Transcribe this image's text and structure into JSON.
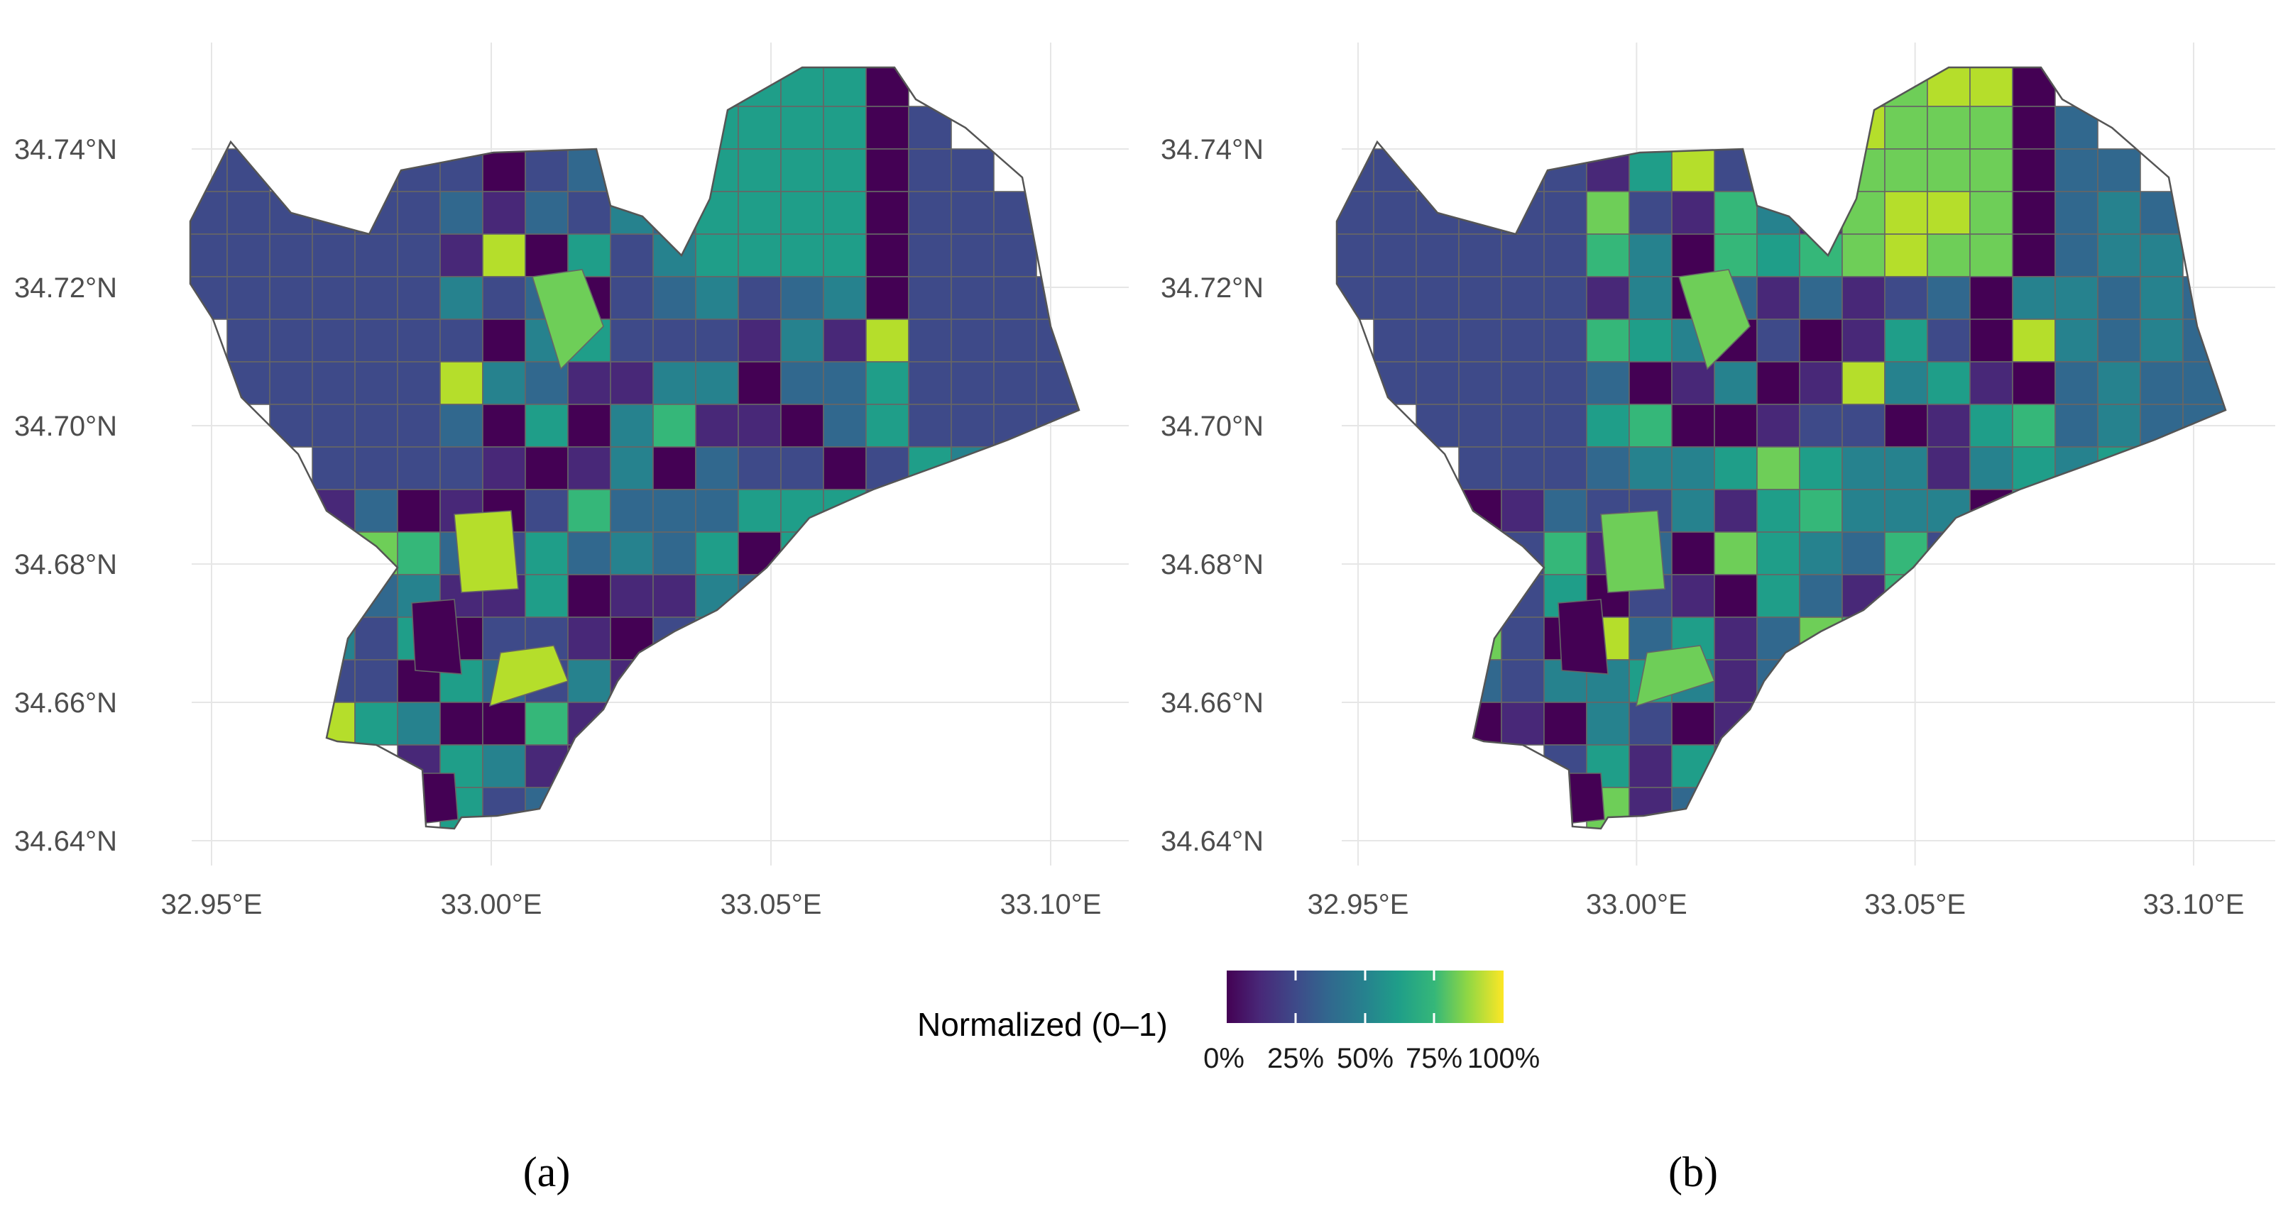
{
  "panels": [
    {
      "id": "a",
      "caption": "(a)",
      "lat_ticks": [
        "34.74°N",
        "34.72°N",
        "34.70°N",
        "34.68°N",
        "34.66°N",
        "34.64°N"
      ],
      "lon_ticks": [
        "32.95°E",
        "33.00°E",
        "33.05°E",
        "33.10°E"
      ]
    },
    {
      "id": "b",
      "caption": "(b)",
      "lat_ticks": [
        "34.74°N",
        "34.72°N",
        "34.70°N",
        "34.68°N",
        "34.66°N",
        "34.64°N"
      ],
      "lon_ticks": [
        "32.95°E",
        "33.00°E",
        "33.05°E",
        "33.10°E"
      ]
    }
  ],
  "axes": {
    "lat_values": [
      34.74,
      34.72,
      34.7,
      34.68,
      34.66,
      34.64
    ],
    "lon_values": [
      32.95,
      33.0,
      33.05,
      33.1
    ],
    "lat_range": [
      34.637,
      34.755
    ],
    "lon_range": [
      32.935,
      33.115
    ],
    "grid": true
  },
  "legend": {
    "title": "Normalized (0–1)",
    "labels": [
      "0%",
      "25%",
      "50%",
      "75%",
      "100%"
    ],
    "colormap": "viridis",
    "placement": "bottom-center"
  },
  "colors": {
    "viridis": [
      "#440154",
      "#482878",
      "#3e4a89",
      "#31688e",
      "#26828e",
      "#1f9e89",
      "#35b779",
      "#6ece58",
      "#b5de2b",
      "#fde725"
    ],
    "outline": "#555555",
    "grid": "#e6e6e6"
  }
}
